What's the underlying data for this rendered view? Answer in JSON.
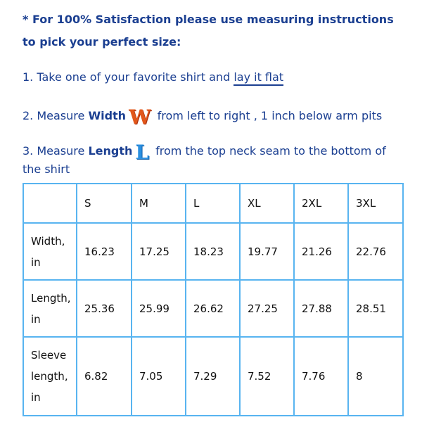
{
  "intro": {
    "line1": "* For 100% Satisfaction please use measuring instructions",
    "line2": "to pick your perfect size:"
  },
  "steps": [
    {
      "prefix": "1. Take one of your favorite shirt and ",
      "link": "lay it flat"
    },
    {
      "prefix": "2. Measure ",
      "bold": "Width",
      "icon": "W",
      "suffix": " from left to right , 1 inch below arm pits"
    },
    {
      "prefix": "3. Measure ",
      "bold": "Length",
      "icon": "L",
      "suffix": " from the top neck seam to the bottom of",
      "cont": "the shirt"
    }
  ],
  "colors": {
    "text": "#1b3f91",
    "border": "#58b4f0",
    "w_icon": "#e2571b",
    "l_icon": "#2a8fe0"
  },
  "table": {
    "headers": [
      "",
      "S",
      "M",
      "L",
      "XL",
      "2XL",
      "3XL"
    ],
    "rows": [
      {
        "label": [
          "Width,",
          "in"
        ],
        "values": [
          "16.23",
          "17.25",
          "18.23",
          "19.77",
          "21.26",
          "22.76"
        ]
      },
      {
        "label": [
          "Length,",
          "in"
        ],
        "values": [
          "25.36",
          "25.99",
          "26.62",
          "27.25",
          "27.88",
          "28.51"
        ]
      },
      {
        "label": [
          "Sleeve",
          "length,",
          "in"
        ],
        "values": [
          "6.82",
          "7.05",
          "7.29",
          "7.52",
          "7.76",
          "8"
        ]
      }
    ]
  }
}
